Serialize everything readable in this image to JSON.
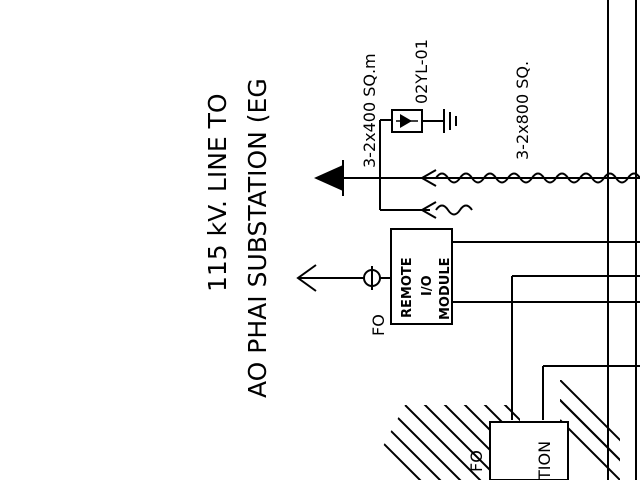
{
  "title": {
    "line1": "115 kV. LINE TO",
    "line2": "AO PHAI SUBSTATION (EG"
  },
  "labels": {
    "cable_400": "3-2x400 SQ.m",
    "cable_800": "3-2x800 SQ.",
    "device_id": "02YL-01",
    "fo": "FO",
    "fo_lower": "FO"
  },
  "module": {
    "line1": "REMOTE",
    "line2": "I/O",
    "line3": "MODULE"
  },
  "station_box": {
    "text": "TION"
  },
  "colors": {
    "ink": "#000000",
    "background": "#ffffff"
  }
}
